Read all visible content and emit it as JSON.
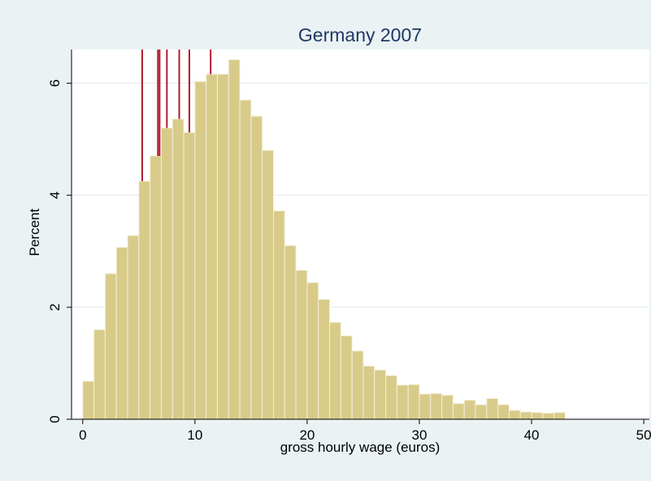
{
  "chart_data": {
    "type": "bar",
    "title": "Germany 2007",
    "xlabel": "gross hourly wage (euros)",
    "ylabel": "Percent",
    "xlim": [
      -1,
      50.5
    ],
    "ylim": [
      0,
      6.6
    ],
    "xticks": [
      0,
      10,
      20,
      30,
      40,
      50
    ],
    "yticks": [
      0,
      2,
      4,
      6
    ],
    "bin_width": 1,
    "bin_start": 0,
    "values": [
      0.68,
      1.6,
      2.6,
      3.07,
      3.28,
      4.25,
      4.7,
      5.2,
      5.36,
      5.12,
      6.03,
      6.16,
      6.16,
      6.42,
      5.7,
      5.41,
      4.8,
      3.72,
      3.1,
      2.66,
      2.44,
      2.14,
      1.73,
      1.49,
      1.22,
      0.95,
      0.88,
      0.78,
      0.61,
      0.62,
      0.45,
      0.46,
      0.43,
      0.28,
      0.34,
      0.26,
      0.37,
      0.26,
      0.16,
      0.13,
      0.12,
      0.11,
      0.12
    ],
    "vlines": [
      5.3,
      6.7,
      6.85,
      7.5,
      8.6,
      9.5,
      11.4
    ],
    "grid": true,
    "colors": {
      "bars": "#d8cb8a",
      "bar_edge": "#f5f0d6",
      "vlines": "#b01c2e",
      "background": "#eaf2f3",
      "plot_area": "#ffffff",
      "grid": "#e8eff1",
      "title": "#1f3866"
    }
  }
}
